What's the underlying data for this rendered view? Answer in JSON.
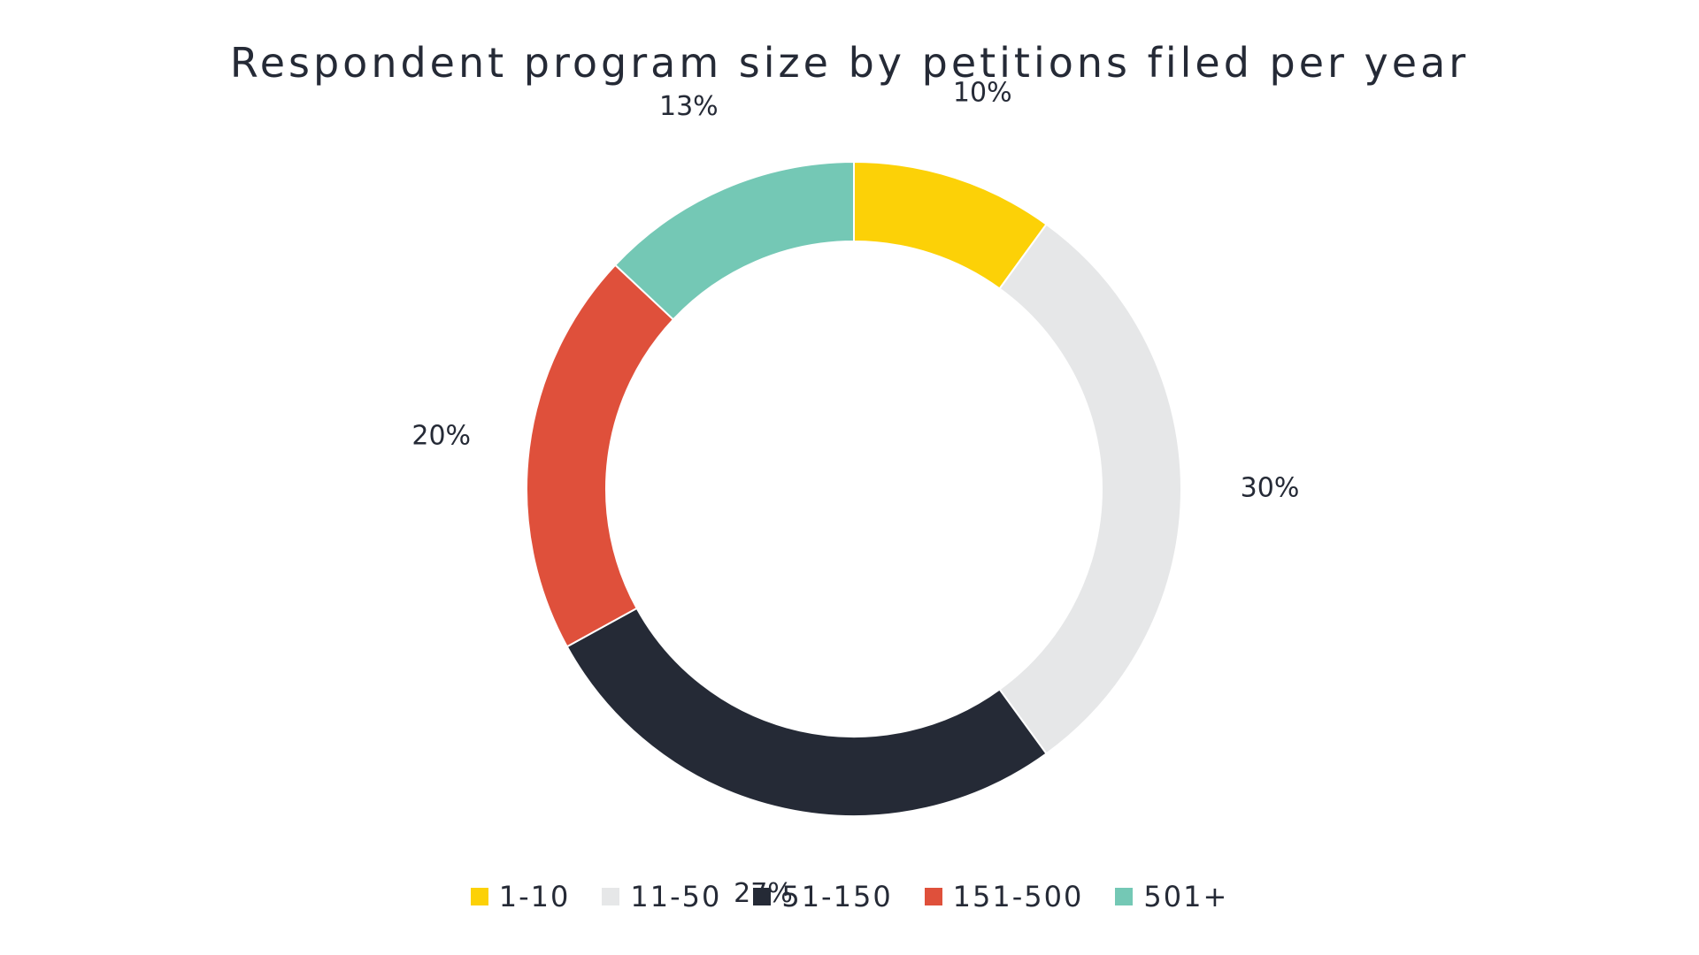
{
  "chart_data": {
    "type": "pie",
    "title": "Respondent program size by petitions filed per year",
    "donut": true,
    "legend_position": "bottom",
    "categories": [
      "1-10",
      "11-50",
      "51-150",
      "151-500",
      "501+"
    ],
    "values": [
      10,
      30,
      27,
      20,
      13
    ],
    "labels": [
      "10%",
      "30%",
      "27%",
      "20%",
      "13%"
    ],
    "colors": [
      "#fcd107",
      "#e6e7e8",
      "#252a36",
      "#df503b",
      "#74c8b5"
    ]
  }
}
